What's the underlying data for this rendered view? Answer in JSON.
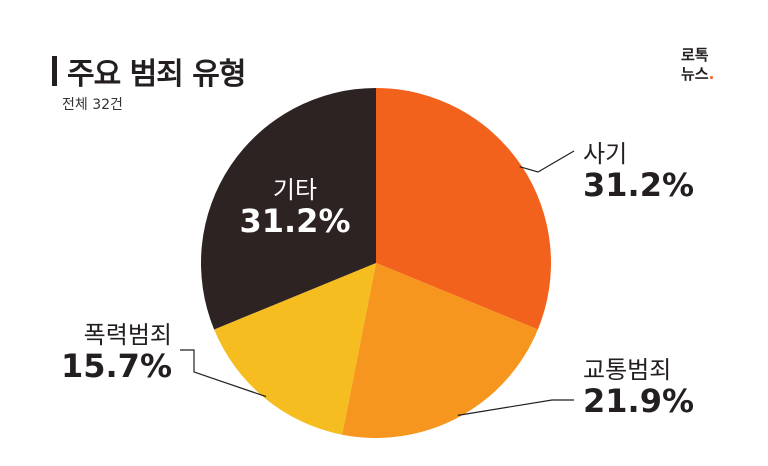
{
  "title": "주요 범죄 유형",
  "subtitle": "전체 32건",
  "logo": {
    "line1": "로톡",
    "line2": "뉴스",
    "dot": "."
  },
  "colors": {
    "text": "#231f20",
    "dark_label": "#ffffff",
    "brand_dot": "#f26522"
  },
  "chart_data": {
    "type": "pie",
    "title": "주요 범죄 유형",
    "subtitle": "전체 32건",
    "slices": [
      {
        "label": "사기",
        "value": 31.2,
        "value_label": "31.2%",
        "color": "#f2621c"
      },
      {
        "label": "교통범죄",
        "value": 21.9,
        "value_label": "21.9%",
        "color": "#f7961e"
      },
      {
        "label": "폭력범죄",
        "value": 15.7,
        "value_label": "15.7%",
        "color": "#f5bd1f"
      },
      {
        "label": "기타",
        "value": 31.2,
        "value_label": "31.2%",
        "color": "#2d2322"
      }
    ]
  }
}
